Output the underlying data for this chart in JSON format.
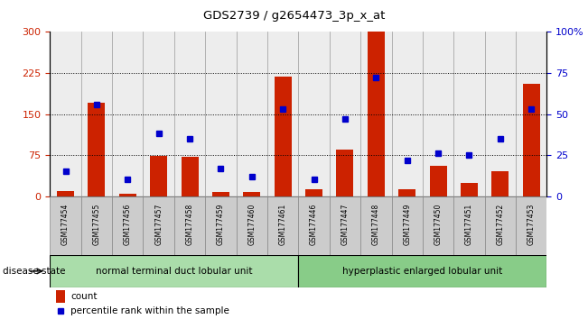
{
  "title": "GDS2739 / g2654473_3p_x_at",
  "samples": [
    "GSM177454",
    "GSM177455",
    "GSM177456",
    "GSM177457",
    "GSM177458",
    "GSM177459",
    "GSM177460",
    "GSM177461",
    "GSM177446",
    "GSM177447",
    "GSM177448",
    "GSM177449",
    "GSM177450",
    "GSM177451",
    "GSM177452",
    "GSM177453"
  ],
  "counts": [
    10,
    170,
    5,
    73,
    72,
    7,
    8,
    218,
    13,
    85,
    300,
    12,
    55,
    25,
    45,
    205
  ],
  "percentiles": [
    15,
    56,
    10,
    38,
    35,
    17,
    12,
    53,
    10,
    47,
    72,
    22,
    26,
    25,
    35,
    53
  ],
  "group1_label": "normal terminal duct lobular unit",
  "group2_label": "hyperplastic enlarged lobular unit",
  "group1_count": 8,
  "group2_count": 8,
  "ylim_left": [
    0,
    300
  ],
  "ylim_right": [
    0,
    100
  ],
  "yticks_left": [
    0,
    75,
    150,
    225,
    300
  ],
  "yticks_right": [
    0,
    25,
    50,
    75,
    100
  ],
  "ytick_labels_right": [
    "0",
    "25",
    "50",
    "75",
    "100%"
  ],
  "bar_color": "#cc2200",
  "dot_color": "#0000cc",
  "group1_color": "#aaddaa",
  "group2_color": "#88cc88",
  "tick_label_color_left": "#cc2200",
  "tick_label_color_right": "#0000cc",
  "background_color": "#ffffff",
  "plot_bg_color": "#ffffff",
  "disease_state_label": "disease state",
  "col_bg_color": "#cccccc"
}
